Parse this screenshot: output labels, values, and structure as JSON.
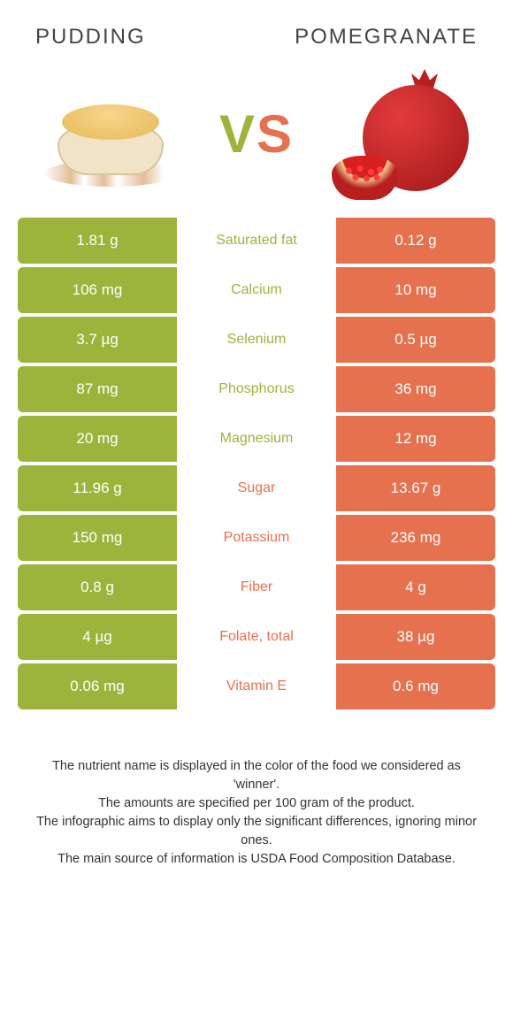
{
  "colors": {
    "left": "#9db43c",
    "right": "#e6714f",
    "row_bg": "#ffffff"
  },
  "header": {
    "left_title": "Pudding",
    "right_title": "Pomegranate",
    "vs_v": "V",
    "vs_s": "S"
  },
  "rows": [
    {
      "label": "Saturated fat",
      "left": "1.81 g",
      "right": "0.12 g",
      "winner": "left"
    },
    {
      "label": "Calcium",
      "left": "106 mg",
      "right": "10 mg",
      "winner": "left"
    },
    {
      "label": "Selenium",
      "left": "3.7 µg",
      "right": "0.5 µg",
      "winner": "left"
    },
    {
      "label": "Phosphorus",
      "left": "87 mg",
      "right": "36 mg",
      "winner": "left"
    },
    {
      "label": "Magnesium",
      "left": "20 mg",
      "right": "12 mg",
      "winner": "left"
    },
    {
      "label": "Sugar",
      "left": "11.96 g",
      "right": "13.67 g",
      "winner": "right"
    },
    {
      "label": "Potassium",
      "left": "150 mg",
      "right": "236 mg",
      "winner": "right"
    },
    {
      "label": "Fiber",
      "left": "0.8 g",
      "right": "4 g",
      "winner": "right"
    },
    {
      "label": "Folate, total",
      "left": "4 µg",
      "right": "38 µg",
      "winner": "right"
    },
    {
      "label": "Vitamin E",
      "left": "0.06 mg",
      "right": "0.6 mg",
      "winner": "right"
    }
  ],
  "footnotes": [
    "The nutrient name is displayed in the color of the food we considered as 'winner'.",
    "The amounts are specified per 100 gram of the product.",
    "The infographic aims to display only the significant differences, ignoring minor ones.",
    "The main source of information is USDA Food Composition Database."
  ]
}
